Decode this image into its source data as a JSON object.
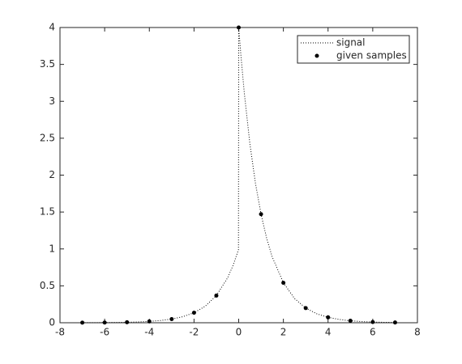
{
  "chart_data": {
    "type": "line",
    "xlim": [
      -8,
      8
    ],
    "xticks": [
      -8,
      -6,
      -4,
      -2,
      0,
      2,
      4,
      6,
      8
    ],
    "ylim": [
      0,
      4
    ],
    "yticks": [
      0,
      0.5,
      1,
      1.5,
      2,
      2.5,
      3,
      3.5,
      4
    ],
    "legend": "northeast",
    "series": [
      {
        "name": "signal",
        "color": "#000000",
        "style": "dotted",
        "x": [
          -7,
          -6.5,
          -6,
          -5.5,
          -5,
          -4.5,
          -4,
          -3.5,
          -3,
          -2.5,
          -2,
          -1.5,
          -1,
          -0.5,
          -0.25,
          -0.01,
          0,
          0.1,
          0.25,
          0.5,
          0.75,
          1,
          1.25,
          1.5,
          2,
          2.5,
          3,
          3.5,
          4,
          4.5,
          5,
          5.5,
          6,
          6.5,
          7
        ],
        "values": [
          0.0009,
          0.0015,
          0.0025,
          0.0041,
          0.0067,
          0.0111,
          0.0183,
          0.0302,
          0.0498,
          0.0821,
          0.1353,
          0.2231,
          0.3679,
          0.6065,
          0.7788,
          0.99,
          4,
          3.6193,
          3.1152,
          2.4261,
          1.8895,
          1.4715,
          1.146,
          0.8925,
          0.5413,
          0.3283,
          0.1991,
          0.1208,
          0.0733,
          0.0444,
          0.027,
          0.0163,
          0.0099,
          0.006,
          0.0036
        ]
      },
      {
        "name": "given samples",
        "color": "#000000",
        "style": "marker",
        "x": [
          -7,
          -6,
          -5,
          -4,
          -3,
          -2,
          -1,
          0,
          1,
          2,
          3,
          4,
          5,
          6,
          7
        ],
        "values": [
          0.0009,
          0.0025,
          0.0067,
          0.0183,
          0.0498,
          0.1353,
          0.3679,
          4,
          1.4715,
          0.5413,
          0.1991,
          0.0733,
          0.027,
          0.0099,
          0.0036
        ]
      }
    ]
  }
}
